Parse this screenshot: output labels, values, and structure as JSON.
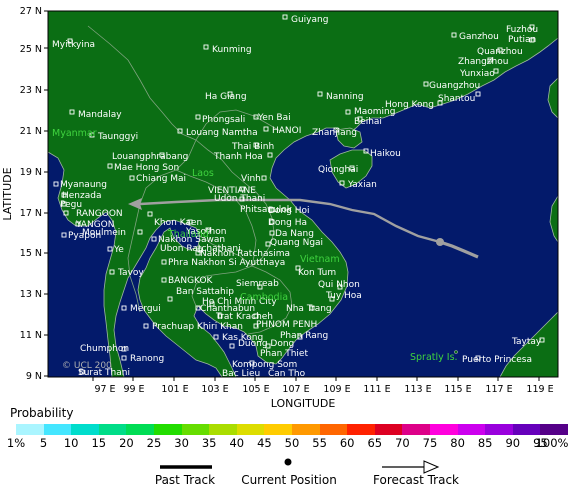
{
  "axes": {
    "x_title": "LONGITUDE",
    "y_title": "LATITUDE",
    "x_ticks": [
      "97 E",
      "99 E",
      "101 E",
      "103 E",
      "105 E",
      "107 E",
      "109 E",
      "111 E",
      "113 E",
      "115 E",
      "117 E",
      "119 E"
    ],
    "y_ticks": [
      "27 N",
      "25 N",
      "23 N",
      "21 N",
      "19 N",
      "17 N",
      "15 N",
      "13 N",
      "11 N",
      "9 N"
    ]
  },
  "colors": {
    "ocean": "#031a6b",
    "land": "#0b6e14",
    "border": "#7fa37f",
    "coast": "#9fb8a0",
    "track": "#a0a0a0",
    "region_label": "#3fd23f"
  },
  "cities": [
    "Guiyang",
    "Fuzhou",
    "Ganzhou",
    "Putian",
    "Myitkyina",
    "Kunming",
    "Quanzhou",
    "Zhangzhou",
    "Yunxiao",
    "Guangzhou",
    "Ha Giang",
    "Nanning",
    "Shantou",
    "Hong Kong",
    "Mandalay",
    "Maoming",
    "Phongsali",
    "Yen Bai",
    "Beihai",
    "Zhanjiang",
    "Louang Namtha",
    "HANOI",
    "Taunggyi",
    "Thai Binh",
    "Haikou",
    "Louangphrabang",
    "Thanh Hoa",
    "Mae Hong Son",
    "Qionghai",
    "Chiang Mai",
    "Vinh",
    "Yaxian",
    "Myanaung",
    "VIENTIANE",
    "Henzada",
    "Udon Thani",
    "Pegu",
    "Phitsanulok",
    "Dong Hoi",
    "RANGOON",
    "Khon Kaen",
    "Dong Ha",
    "YANGON",
    "Moulmein",
    "Yasothon",
    "Da Nang",
    "Pyapon",
    "Nakhon Sawan",
    "Quang Ngai",
    "Ubon Ratchathani",
    "Ye",
    "Nakhon Ratchasima",
    "Phra Nakhon Si Ayutthaya",
    "Kon Tum",
    "Tavoy",
    "BANGKOK",
    "Siemreab",
    "Qui Nhon",
    "Ban Sattahip",
    "Tuy Hoa",
    "Ho Chi Minh City",
    "Mergui",
    "Chanthabun",
    "Nha Trang",
    "Trat",
    "Kracheh",
    "Prachuap Khiri Khan",
    "PHNOM PENH",
    "Phan Rang",
    "Kas Kong",
    "Duong Dong",
    "Phan Thiet",
    "Chumphon",
    "Ranong",
    "Kompong Som",
    "Surat Thani",
    "Bac Lieu",
    "Can Tho",
    "Puerto Princesa",
    "Taytay"
  ],
  "regions": [
    "Myanmar",
    "Laos",
    "Thailand",
    "Vietnam",
    "Cambodia",
    "Spratly Is."
  ],
  "copyright": "© UCL 200",
  "legend": {
    "title": "Probability",
    "labels": [
      "1%",
      "5",
      "10",
      "15",
      "20",
      "25",
      "30",
      "35",
      "40",
      "45",
      "50",
      "55",
      "60",
      "65",
      "70",
      "75",
      "80",
      "85",
      "90",
      "95",
      "100%"
    ],
    "colors": [
      "#aaf5ff",
      "#44e6ff",
      "#00ddcc",
      "#00dd88",
      "#00dd55",
      "#22dd00",
      "#66dd00",
      "#aadd00",
      "#dddd00",
      "#ffcc00",
      "#ff9900",
      "#ff6600",
      "#ff2200",
      "#dd0022",
      "#dd0088",
      "#ff00dd",
      "#cc00ee",
      "#9900dd",
      "#6600bb",
      "#550088"
    ],
    "keys": [
      "Past Track",
      "Current Position",
      "Forecast Track"
    ]
  }
}
